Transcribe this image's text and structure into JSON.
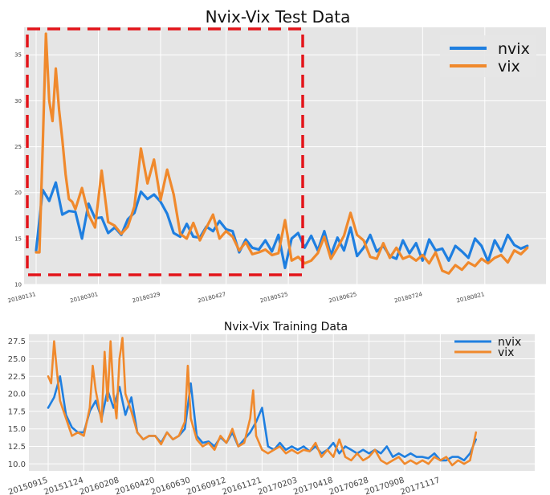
{
  "chart_data": [
    {
      "type": "line",
      "title": "Nvix-Vix Test Data",
      "xlabel": "",
      "ylabel": "",
      "ylim": [
        10,
        38
      ],
      "yticks": [
        10,
        15,
        20,
        25,
        30,
        35
      ],
      "xlim": [
        0,
        152
      ],
      "xticks": [
        {
          "x": 0,
          "label": "20180131"
        },
        {
          "x": 19,
          "label": "20180301"
        },
        {
          "x": 38,
          "label": "20180329"
        },
        {
          "x": 58,
          "label": "20180427"
        },
        {
          "x": 77,
          "label": "20180525"
        },
        {
          "x": 98,
          "label": "20180625"
        },
        {
          "x": 118,
          "label": "20180724"
        },
        {
          "x": 137,
          "label": "20180821"
        }
      ],
      "grid": true,
      "legend_position": "top-right",
      "colors": {
        "nvix": "#1f7fe0",
        "vix": "#f0892c",
        "highlight": "#e3141a",
        "background": "#e5e5e5"
      },
      "annotation": "dashed red rectangle highlighting 20180131 to 20180525",
      "series": [
        {
          "name": "nvix",
          "x": [
            0,
            2,
            4,
            6,
            8,
            10,
            12,
            14,
            16,
            18,
            20,
            22,
            24,
            26,
            28,
            30,
            32,
            34,
            36,
            38,
            40,
            42,
            44,
            46,
            48,
            50,
            52,
            54,
            56,
            58,
            60,
            62,
            64,
            66,
            68,
            70,
            72,
            74,
            76,
            78,
            80,
            82,
            84,
            86,
            88,
            90,
            92,
            94,
            96,
            98,
            100,
            102,
            104,
            106,
            108,
            110,
            112,
            114,
            116,
            118,
            120,
            122,
            124,
            126,
            128,
            130,
            132,
            134,
            136,
            138,
            140,
            142,
            144,
            146,
            148,
            150
          ],
          "y": [
            13.7,
            20.3,
            19.1,
            21.1,
            17.6,
            18.0,
            17.9,
            15.0,
            18.8,
            17.2,
            17.3,
            15.6,
            16.2,
            15.4,
            17.1,
            17.8,
            20.1,
            19.3,
            19.8,
            19.0,
            17.7,
            15.6,
            15.2,
            16.6,
            15.2,
            15.1,
            16.3,
            15.8,
            16.9,
            16.0,
            15.8,
            13.5,
            14.9,
            14.0,
            13.8,
            14.8,
            13.6,
            15.4,
            11.8,
            15.0,
            15.6,
            14.0,
            15.3,
            13.7,
            15.8,
            13.2,
            15.1,
            13.7,
            16.2,
            13.1,
            14.0,
            15.4,
            13.6,
            14.2,
            13.1,
            12.8,
            14.8,
            13.4,
            14.5,
            12.6,
            14.9,
            13.7,
            13.9,
            12.6,
            14.2,
            13.6,
            12.9,
            15.0,
            14.2,
            12.5,
            14.8,
            13.6,
            15.4,
            14.3,
            13.9,
            14.2
          ]
        },
        {
          "name": "vix",
          "x": [
            0,
            1,
            2,
            3,
            4,
            5,
            6,
            7,
            8,
            9,
            10,
            11,
            12,
            14,
            16,
            18,
            20,
            22,
            24,
            26,
            28,
            30,
            32,
            34,
            36,
            38,
            40,
            42,
            44,
            46,
            48,
            50,
            52,
            54,
            56,
            58,
            60,
            62,
            64,
            66,
            68,
            70,
            72,
            74,
            76,
            78,
            80,
            82,
            84,
            86,
            88,
            90,
            92,
            94,
            96,
            98,
            100,
            102,
            104,
            106,
            108,
            110,
            112,
            114,
            116,
            118,
            120,
            122,
            124,
            126,
            128,
            130,
            132,
            134,
            136,
            138,
            140,
            142,
            144,
            146,
            148,
            150
          ],
          "y": [
            13.5,
            13.5,
            25.0,
            37.3,
            30.0,
            27.8,
            33.5,
            29.0,
            25.8,
            22.0,
            19.3,
            19.0,
            18.2,
            20.5,
            17.6,
            16.2,
            22.4,
            16.8,
            16.4,
            15.5,
            16.3,
            18.5,
            24.8,
            21.0,
            23.6,
            19.2,
            22.5,
            19.8,
            15.5,
            15.0,
            16.7,
            14.8,
            16.2,
            17.6,
            15.0,
            15.8,
            15.2,
            13.7,
            14.6,
            13.3,
            13.5,
            13.8,
            13.2,
            13.4,
            17.0,
            12.6,
            13.0,
            12.3,
            12.6,
            13.4,
            15.2,
            12.8,
            14.0,
            15.3,
            17.8,
            15.4,
            14.8,
            13.0,
            12.8,
            14.5,
            12.9,
            14.0,
            12.8,
            13.1,
            12.6,
            13.2,
            12.3,
            13.5,
            11.5,
            11.2,
            12.1,
            11.6,
            12.4,
            12.0,
            12.8,
            12.3,
            12.9,
            13.2,
            12.4,
            13.7,
            13.3,
            14.0
          ]
        }
      ]
    },
    {
      "type": "line",
      "title": "Nvix-Vix Training Data",
      "xlabel": "",
      "ylabel": "",
      "ylim": [
        9,
        28.5
      ],
      "yticks": [
        10.0,
        12.5,
        15.0,
        17.5,
        20.0,
        22.5,
        25.0,
        27.5
      ],
      "yticklabels": [
        "10.0",
        "12.5",
        "15.0",
        "17.5",
        "20.0",
        "22.5",
        "25.0",
        "27.5"
      ],
      "xlim": [
        0,
        160
      ],
      "xticks": [
        {
          "x": 0,
          "label": "20150915"
        },
        {
          "x": 12,
          "label": "20151124"
        },
        {
          "x": 24,
          "label": "20160208"
        },
        {
          "x": 36,
          "label": "20160420"
        },
        {
          "x": 48,
          "label": "20160630"
        },
        {
          "x": 60,
          "label": "20160912"
        },
        {
          "x": 72,
          "label": "20161121"
        },
        {
          "x": 84,
          "label": "20170203"
        },
        {
          "x": 96,
          "label": "20170418"
        },
        {
          "x": 108,
          "label": "20170628"
        },
        {
          "x": 120,
          "label": "20170908"
        },
        {
          "x": 132,
          "label": "20171117"
        }
      ],
      "grid": true,
      "legend_position": "top-right",
      "colors": {
        "nvix": "#1f7fe0",
        "vix": "#f0892c",
        "background": "#e5e5e5"
      },
      "series": [
        {
          "name": "nvix",
          "x": [
            0,
            2,
            4,
            6,
            8,
            10,
            12,
            14,
            16,
            18,
            20,
            22,
            24,
            26,
            28,
            30,
            32,
            34,
            36,
            38,
            40,
            42,
            44,
            46,
            48,
            50,
            52,
            54,
            56,
            58,
            60,
            62,
            64,
            66,
            68,
            70,
            72,
            74,
            76,
            78,
            80,
            82,
            84,
            86,
            88,
            90,
            92,
            94,
            96,
            98,
            100,
            102,
            104,
            106,
            108,
            110,
            112,
            114,
            116,
            118,
            120,
            122,
            124,
            126,
            128,
            130,
            132,
            134,
            136,
            138,
            140,
            142,
            144
          ],
          "y": [
            18,
            19.5,
            22.5,
            17,
            15.2,
            14.5,
            14.5,
            17.5,
            19,
            16.5,
            20.5,
            18,
            21,
            17,
            19.5,
            14.5,
            13.5,
            14,
            14,
            13,
            14.5,
            13.5,
            14,
            15,
            21.5,
            14,
            13,
            13.2,
            12.5,
            13.8,
            13,
            14.5,
            12.5,
            13.5,
            14.5,
            16,
            18,
            12.5,
            12,
            13,
            12,
            12.5,
            12,
            12.5,
            11.8,
            12.5,
            11.5,
            12,
            13,
            11.5,
            12.5,
            12,
            11.5,
            12,
            11.5,
            12,
            11.5,
            12.5,
            11,
            11.5,
            11,
            11.5,
            11,
            11,
            10.8,
            11.5,
            10.5,
            10.5,
            11,
            11,
            10.5,
            11.5,
            13.5
          ]
        },
        {
          "name": "vix",
          "x": [
            0,
            1,
            2,
            3,
            4,
            6,
            8,
            10,
            12,
            14,
            15,
            16,
            18,
            19,
            20,
            21,
            22,
            23,
            24,
            25,
            26,
            28,
            30,
            32,
            34,
            36,
            38,
            40,
            42,
            44,
            46,
            47,
            48,
            50,
            52,
            54,
            56,
            58,
            60,
            62,
            64,
            66,
            68,
            69,
            70,
            72,
            74,
            76,
            78,
            80,
            82,
            84,
            86,
            88,
            90,
            92,
            94,
            96,
            98,
            100,
            102,
            104,
            106,
            108,
            110,
            112,
            114,
            116,
            118,
            120,
            122,
            124,
            126,
            128,
            130,
            132,
            134,
            136,
            138,
            140,
            142,
            144
          ],
          "y": [
            22.5,
            21.5,
            27.5,
            23,
            19,
            16.5,
            14,
            14.5,
            14,
            18,
            24,
            20.5,
            16,
            26,
            19,
            27.5,
            20,
            16.5,
            25,
            28,
            20,
            17.5,
            14.5,
            13.5,
            14,
            14,
            12.8,
            14.5,
            13.5,
            14,
            16,
            24,
            16.5,
            13.5,
            12.5,
            13,
            12,
            14,
            13,
            15,
            12.5,
            13,
            16.5,
            20.5,
            14,
            12,
            11.5,
            12,
            12.5,
            11.5,
            12,
            11.5,
            12,
            11.8,
            13,
            11,
            12,
            11,
            13.5,
            11,
            10.5,
            11.5,
            10.5,
            11,
            12,
            10.5,
            10,
            10.5,
            11,
            10,
            10.5,
            10,
            10.5,
            10,
            11,
            10.5,
            11,
            9.8,
            10.5,
            10,
            10.5,
            14.5
          ]
        }
      ]
    }
  ]
}
